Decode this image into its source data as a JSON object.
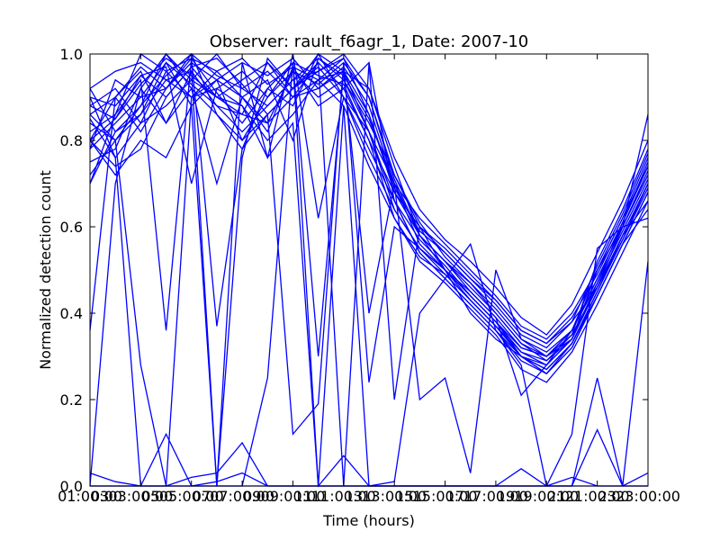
{
  "chart_data": {
    "type": "line",
    "title": "Observer: rault_f6agr_1, Date: 2007-10",
    "xlabel": "Time (hours)",
    "ylabel": "Normalized detection count",
    "x": [
      1,
      2,
      3,
      4,
      5,
      6,
      7,
      8,
      9,
      10,
      11,
      12,
      13,
      14,
      15,
      16,
      17,
      18,
      19,
      20,
      21,
      22,
      23
    ],
    "x_tick_values": [
      1,
      3,
      5,
      7,
      9,
      11,
      13,
      15,
      17,
      19,
      21,
      23
    ],
    "x_tick_labels": [
      "01:00:00",
      "03:00:00",
      "05:00:00",
      "07:00:00",
      "09:00:00",
      "11:00:00",
      "13:00:00",
      "15:00:00",
      "17:00:00",
      "19:00:00",
      "21:00:00",
      "23:00:00"
    ],
    "x_tick_overlap_labels": [
      "03",
      "05",
      "07",
      "09",
      "11",
      "13",
      "15",
      "17",
      "19",
      "21",
      "23"
    ],
    "xlim": [
      1,
      23
    ],
    "ylim": [
      0.0,
      1.0
    ],
    "y_tick_values": [
      0.0,
      0.2,
      0.4,
      0.6,
      0.8,
      1.0
    ],
    "y_tick_labels": [
      "0.0",
      "0.2",
      "0.4",
      "0.6",
      "0.8",
      "1.0"
    ],
    "grid": false,
    "line_color": "#0000ff",
    "series": [
      {
        "values": [
          0.88,
          0.85,
          0.93,
          0.99,
          0.95,
          0.9,
          0.86,
          0.84,
          0.9,
          0.98,
          0.92,
          0.8,
          0.68,
          0.58,
          0.52,
          0.46,
          0.4,
          0.33,
          0.3,
          0.36,
          0.48,
          0.6,
          0.73
        ]
      },
      {
        "values": [
          0.8,
          0.9,
          0.97,
          0.92,
          1.0,
          0.95,
          0.92,
          0.88,
          0.94,
          0.99,
          0.95,
          0.85,
          0.7,
          0.56,
          0.5,
          0.44,
          0.38,
          0.31,
          0.28,
          0.34,
          0.5,
          0.62,
          0.76
        ]
      },
      {
        "values": [
          0.72,
          0.8,
          0.88,
          1.0,
          0.92,
          0.86,
          0.8,
          0.9,
          0.96,
          0.93,
          0.98,
          0.9,
          0.72,
          0.6,
          0.54,
          0.48,
          0.42,
          0.35,
          0.32,
          0.38,
          0.46,
          0.58,
          0.7
        ]
      },
      {
        "values": [
          0.85,
          0.76,
          0.84,
          0.96,
          0.99,
          0.91,
          0.84,
          0.92,
          0.88,
          1.0,
          0.96,
          0.82,
          0.66,
          0.54,
          0.48,
          0.42,
          0.36,
          0.29,
          0.26,
          0.33,
          0.44,
          0.56,
          0.68
        ]
      },
      {
        "values": [
          0.9,
          0.88,
          0.95,
          0.9,
          0.97,
          0.99,
          0.93,
          0.86,
          0.92,
          0.97,
          0.9,
          0.76,
          0.64,
          0.55,
          0.5,
          0.45,
          0.39,
          0.32,
          0.3,
          0.35,
          0.52,
          0.64,
          0.78
        ]
      },
      {
        "values": [
          0.78,
          0.84,
          0.9,
          0.98,
          0.88,
          0.94,
          0.98,
          0.95,
          0.99,
          0.92,
          0.97,
          0.88,
          0.7,
          0.62,
          0.56,
          0.5,
          0.44,
          0.37,
          0.34,
          0.4,
          0.5,
          0.6,
          0.72
        ]
      },
      {
        "values": [
          0.92,
          0.82,
          0.86,
          0.94,
          0.96,
          0.88,
          0.82,
          0.88,
          0.94,
          0.96,
          1.0,
          0.92,
          0.74,
          0.58,
          0.52,
          0.47,
          0.41,
          0.34,
          0.31,
          0.36,
          0.47,
          0.59,
          0.71
        ]
      },
      {
        "values": [
          0.75,
          0.78,
          0.92,
          1.0,
          0.94,
          0.9,
          0.88,
          0.8,
          0.86,
          0.94,
          0.99,
          0.86,
          0.68,
          0.6,
          0.55,
          0.49,
          0.43,
          0.36,
          0.33,
          0.39,
          0.49,
          0.61,
          0.74
        ]
      },
      {
        "values": [
          0.86,
          0.9,
          0.82,
          0.92,
          0.99,
          0.96,
          0.9,
          0.94,
          0.8,
          0.99,
          0.94,
          0.84,
          0.72,
          0.61,
          0.53,
          0.47,
          0.4,
          0.33,
          0.29,
          0.35,
          0.46,
          0.57,
          0.69
        ]
      },
      {
        "values": [
          0.82,
          0.86,
          1.0,
          0.96,
          0.9,
          0.92,
          0.96,
          0.9,
          0.98,
          0.95,
          0.93,
          0.8,
          0.62,
          0.52,
          0.47,
          0.41,
          0.35,
          0.27,
          0.24,
          0.31,
          0.42,
          0.54,
          0.66
        ]
      },
      {
        "values": [
          0.7,
          0.82,
          0.88,
          0.95,
          1.0,
          0.86,
          0.78,
          0.86,
          0.92,
          1.0,
          0.9,
          0.78,
          0.66,
          0.57,
          0.51,
          0.44,
          0.38,
          0.3,
          0.27,
          0.33,
          0.45,
          0.58,
          0.7
        ]
      },
      {
        "values": [
          0.88,
          0.92,
          0.84,
          0.88,
          0.94,
          1.0,
          0.92,
          0.96,
          0.9,
          0.92,
          0.96,
          0.86,
          0.69,
          0.59,
          0.54,
          0.48,
          0.43,
          0.36,
          0.33,
          0.38,
          0.51,
          0.63,
          0.77
        ]
      },
      {
        "values": [
          0.8,
          0.74,
          0.78,
          0.9,
          0.97,
          0.9,
          0.94,
          0.98,
          0.92,
          0.96,
          0.99,
          0.9,
          0.71,
          0.58,
          0.5,
          0.43,
          0.37,
          0.3,
          0.28,
          0.34,
          0.47,
          0.61,
          0.75
        ]
      },
      {
        "values": [
          0.36,
          0.9,
          0.96,
          0.84,
          0.92,
          0.7,
          0.9,
          0.82,
          0.97,
          0.88,
          0.92,
          0.98,
          0.2,
          0.6,
          0.5,
          0.44,
          0.38,
          0.32,
          0.3,
          0.36,
          0.48,
          0.6,
          0.72
        ]
      },
      {
        "values": [
          0.8,
          0.85,
          0.95,
          0.97,
          0.7,
          0.92,
          0.88,
          0.76,
          1.0,
          0.62,
          0.9,
          0.82,
          0.7,
          0.2,
          0.25,
          0.03,
          0.5,
          0.34,
          0.3,
          0.34,
          0.46,
          0.58,
          0.66
        ]
      },
      {
        "values": [
          0.84,
          0.8,
          0.28,
          0.0,
          0.9,
          0.94,
          0.8,
          0.86,
          0.12,
          0.19,
          0.98,
          0.24,
          0.6,
          0.55,
          0.5,
          0.4,
          0.34,
          0.3,
          0.26,
          0.32,
          0.44,
          0.56,
          0.68
        ]
      },
      {
        "values": [
          0.7,
          0.86,
          0.94,
          0.36,
          0.99,
          0.37,
          0.78,
          0.92,
          0.98,
          0.3,
          0.96,
          0.4,
          0.7,
          0.58,
          0.52,
          0.45,
          0.39,
          0.21,
          0.28,
          0.36,
          0.5,
          0.62,
          0.74
        ]
      },
      {
        "values": [
          0.0,
          0.7,
          0.92,
          0.84,
          0.96,
          0.0,
          0.76,
          0.99,
          0.92,
          0.98,
          0.0,
          0.98,
          0.66,
          0.54,
          0.48,
          0.42,
          0.36,
          0.3,
          0.27,
          0.33,
          0.45,
          0.57,
          0.7
        ]
      },
      {
        "values": [
          0.9,
          0.76,
          0.0,
          0.0,
          0.0,
          0.0,
          0.0,
          0.25,
          0.98,
          0.0,
          0.88,
          0.0,
          0.01,
          0.4,
          0.48,
          0.56,
          0.36,
          0.28,
          0.0,
          0.02,
          0.0,
          0.0,
          0.52
        ]
      },
      {
        "values": [
          0.8,
          0.72,
          0.8,
          0.76,
          0.88,
          0.0,
          0.98,
          0.76,
          0.84,
          0.0,
          0.07,
          0.0,
          0.0,
          0.0,
          0.0,
          0.0,
          0.0,
          0.0,
          0.0,
          0.12,
          0.55,
          0.6,
          0.62
        ]
      },
      {
        "values": [
          0.03,
          0.01,
          0.0,
          0.0,
          0.02,
          0.03,
          0.1,
          0.0,
          0.0,
          0.0,
          0.0,
          0.0,
          0.0,
          0.0,
          0.0,
          0.0,
          0.0,
          0.0,
          0.0,
          0.0,
          0.0,
          0.0,
          0.03
        ]
      },
      {
        "values": [
          0.0,
          0.0,
          0.0,
          0.12,
          0.0,
          0.0,
          0.0,
          0.0,
          0.0,
          0.0,
          0.0,
          0.0,
          0.0,
          0.0,
          0.0,
          0.0,
          0.0,
          0.04,
          0.0,
          0.0,
          0.13,
          0.0,
          0.0
        ]
      },
      {
        "values": [
          0.0,
          0.0,
          0.0,
          0.0,
          0.0,
          0.01,
          0.03,
          0.0,
          0.0,
          0.0,
          0.0,
          0.0,
          0.0,
          0.0,
          0.0,
          0.0,
          0.0,
          0.0,
          0.0,
          0.0,
          0.25,
          0.0,
          0.0
        ]
      },
      {
        "values": [
          0.92,
          0.96,
          0.98,
          0.94,
          0.9,
          0.96,
          0.99,
          0.93,
          0.97,
          0.94,
          0.88,
          0.74,
          0.62,
          0.53,
          0.49,
          0.43,
          0.37,
          0.3,
          0.26,
          0.32,
          0.44,
          0.56,
          0.64
        ]
      },
      {
        "values": [
          0.86,
          0.8,
          0.86,
          0.98,
          0.93,
          0.88,
          0.86,
          0.98,
          0.9,
          0.94,
          0.96,
          0.92,
          0.76,
          0.64,
          0.57,
          0.52,
          0.46,
          0.39,
          0.35,
          0.42,
          0.54,
          0.66,
          0.8
        ]
      },
      {
        "values": [
          0.78,
          0.94,
          0.9,
          0.92,
          0.98,
          0.94,
          0.9,
          0.84,
          0.96,
          0.9,
          0.94,
          0.82,
          0.64,
          0.55,
          0.49,
          0.43,
          0.37,
          0.31,
          0.29,
          0.34,
          0.46,
          0.6,
          0.86
        ]
      }
    ]
  }
}
